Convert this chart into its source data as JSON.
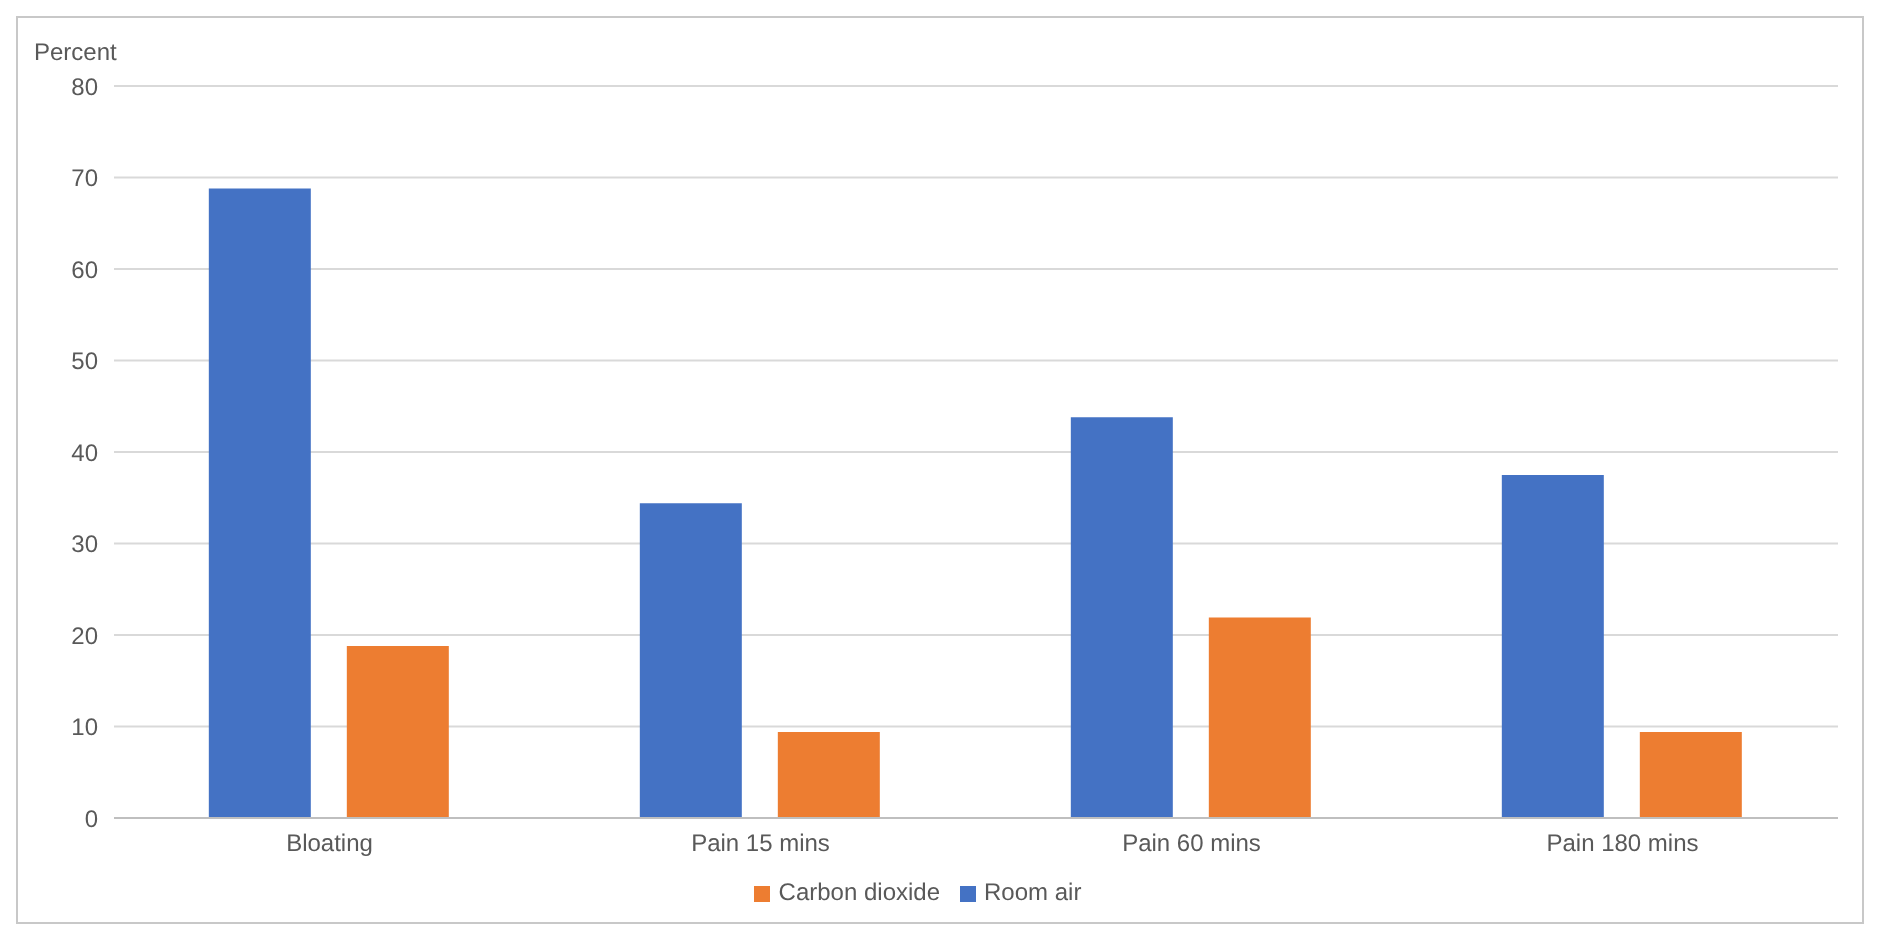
{
  "chart_data": {
    "type": "bar",
    "ylabel": "Percent",
    "categories": [
      "Bloating",
      "Pain 15 mins",
      "Pain 60 mins",
      "Pain 180 mins"
    ],
    "series": [
      {
        "name": "Room air",
        "color": "#4472c4",
        "values": [
          68.8,
          34.4,
          43.8,
          37.5
        ]
      },
      {
        "name": "Carbon dioxide",
        "color": "#ed7d31",
        "values": [
          18.8,
          9.4,
          21.9,
          9.4
        ]
      }
    ],
    "ylim": [
      0,
      80
    ],
    "yticks": [
      0,
      10,
      20,
      30,
      40,
      50,
      60,
      70,
      80
    ],
    "grid": "y",
    "legend": "bottom"
  }
}
